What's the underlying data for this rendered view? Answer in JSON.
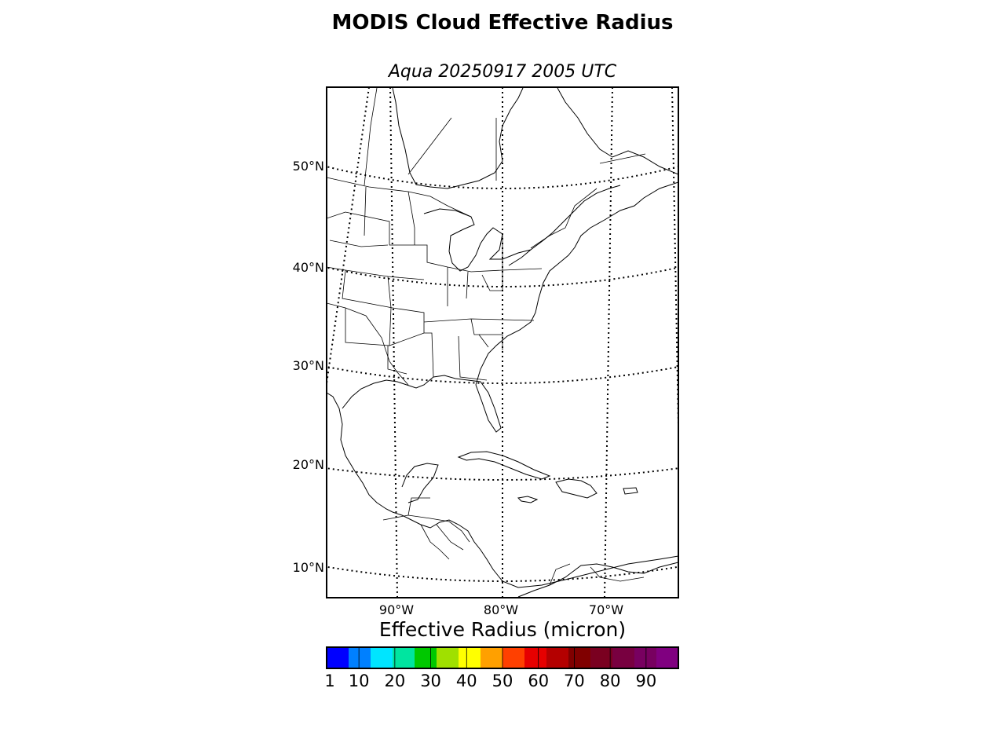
{
  "title": "MODIS Cloud Effective Radius",
  "subtitle": "Aqua 20250917 2005 UTC",
  "map": {
    "projection": "lambert-conformal",
    "extent": {
      "lon_min": -97,
      "lon_max": -62,
      "lat_min": 7,
      "lat_max": 58
    },
    "parallels": [
      10,
      20,
      30,
      40,
      50
    ],
    "meridians": [
      -100,
      -90,
      -80,
      -70,
      -60
    ],
    "lat_labels": [
      "10°N",
      "20°N",
      "30°N",
      "40°N",
      "50°N"
    ],
    "lon_labels": [
      "90°W",
      "80°W",
      "70°W"
    ],
    "grid_style": "dotted"
  },
  "colorbar": {
    "label": "Effective Radius (micron)",
    "min": 1,
    "max": 99,
    "ticks": [
      1,
      10,
      20,
      30,
      40,
      50,
      60,
      70,
      80,
      90
    ],
    "tick_labels": [
      "1",
      "10",
      "20",
      "30",
      "40",
      "50",
      "60",
      "70",
      "80",
      "90"
    ],
    "colors": [
      "#0000ff",
      "#0080ff",
      "#00e5ff",
      "#00e5a0",
      "#00c800",
      "#a0e000",
      "#ffff00",
      "#ffa000",
      "#ff4000",
      "#e60000",
      "#b40000",
      "#800000",
      "#7a0020",
      "#780040",
      "#780060",
      "#800080"
    ]
  }
}
